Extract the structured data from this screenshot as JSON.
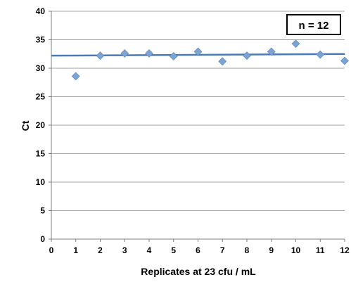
{
  "chart_data": {
    "type": "scatter",
    "title": "",
    "xlabel": "Replicates at 23 cfu / mL",
    "ylabel": "Ct",
    "xlim": [
      0,
      12
    ],
    "ylim": [
      0,
      40
    ],
    "x_ticks": [
      0,
      1,
      2,
      3,
      4,
      5,
      6,
      7,
      8,
      9,
      10,
      11,
      12
    ],
    "y_ticks": [
      0,
      5,
      10,
      15,
      20,
      25,
      30,
      35,
      40
    ],
    "grid": "horizontal",
    "series": [
      {
        "x": [
          1,
          2,
          3,
          4,
          5,
          6,
          7,
          8,
          9,
          10,
          11,
          12
        ],
        "y": [
          28.6,
          32.2,
          32.6,
          32.6,
          32.1,
          32.9,
          31.2,
          32.2,
          32.9,
          34.3,
          32.4,
          31.3
        ],
        "marker": "diamond",
        "color": "#7ba3d4"
      }
    ],
    "trendline": {
      "type": "linear",
      "x": [
        0,
        12
      ],
      "y": [
        32.2,
        32.5
      ],
      "color": "#4a7ab8"
    },
    "annotation": {
      "text": "n = 12",
      "position": "top-right"
    }
  }
}
